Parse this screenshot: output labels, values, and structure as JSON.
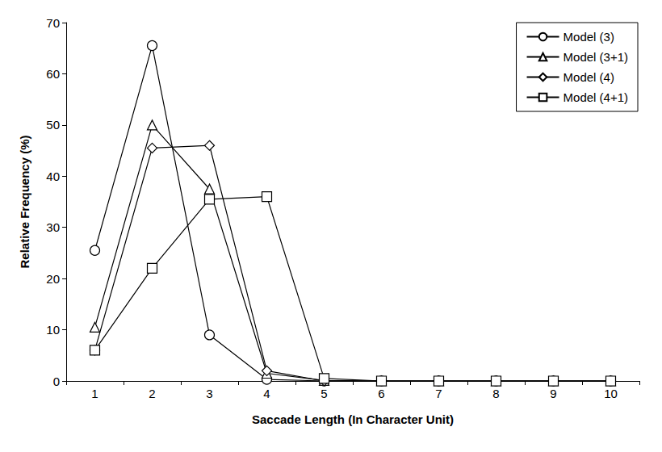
{
  "chart_data": {
    "type": "line",
    "x_label": "Saccade Length (In Character Unit)",
    "y_label": "Relative Frequency (%)",
    "categories": [
      "1",
      "2",
      "3",
      "4",
      "5",
      "6",
      "7",
      "8",
      "9",
      "10"
    ],
    "ylim": [
      0,
      70
    ],
    "yticks": [
      0,
      10,
      20,
      30,
      40,
      50,
      60,
      70
    ],
    "grid": false,
    "legend": "upper right",
    "series": [
      {
        "name": "Model (3)",
        "color": "#000000",
        "marker": "circle",
        "line_style": "solid",
        "values": [
          25.5,
          65.5,
          9,
          0.3,
          0,
          0,
          0,
          0,
          0,
          0
        ]
      },
      {
        "name": "Model (3+1)",
        "color": "#000000",
        "marker": "triangle",
        "line_style": "solid",
        "values": [
          10.5,
          50,
          37.5,
          1.5,
          0.1,
          0,
          0,
          0,
          0,
          0
        ]
      },
      {
        "name": "Model (4)",
        "color": "#000000",
        "marker": "diamond",
        "line_style": "solid",
        "values": [
          6,
          45.5,
          46,
          2,
          0,
          0,
          0,
          0,
          0,
          0
        ]
      },
      {
        "name": "Model (4+1)",
        "color": "#000000",
        "marker": "square",
        "line_style": "solid",
        "values": [
          6,
          22,
          35.5,
          36,
          0.5,
          0,
          0,
          0,
          0,
          0
        ]
      }
    ]
  }
}
